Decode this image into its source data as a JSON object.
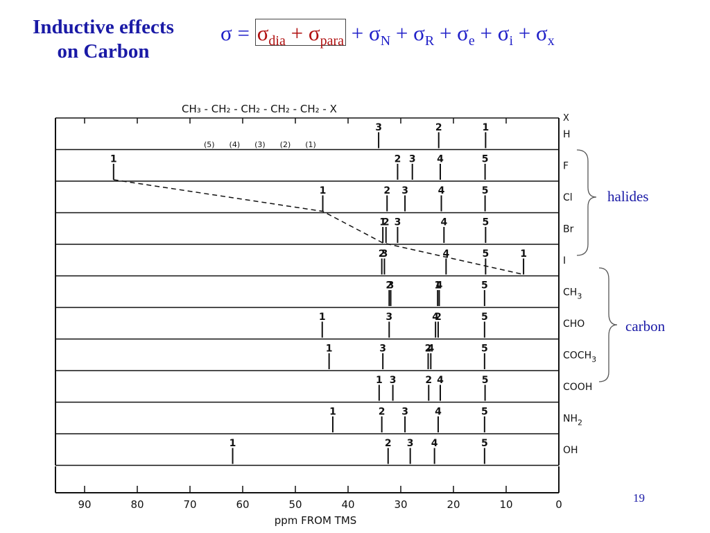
{
  "slide": {
    "title_line1": "Inductive effects",
    "title_line2": "on Carbon",
    "page_number": "19"
  },
  "equation": {
    "sigma": "σ",
    "equals": "=",
    "plus": "+",
    "dia": "dia",
    "para": "para",
    "sub_N": "N",
    "sub_R": "R",
    "sub_e": "e",
    "sub_i": "i",
    "sub_x": "x"
  },
  "chain": {
    "formula": "CH₃ - CH₂ - CH₂ - CH₂ - CH₂ - X",
    "positions": "(5)      (4)      (3)      (2)      (1)"
  },
  "groups": {
    "halides": "halides",
    "carbon": "carbon"
  },
  "colors": {
    "title": "#1a1aa6",
    "equation": "#2020c8",
    "highlight": "#b01010",
    "ink": "#111111"
  },
  "chart_data": {
    "type": "scatter",
    "xlabel": "ppm FROM TMS",
    "xlim": [
      95,
      0
    ],
    "x_ticks": [
      90,
      80,
      70,
      60,
      50,
      40,
      30,
      20,
      10,
      0
    ],
    "column_header": "X",
    "rows": [
      {
        "substituent": "H",
        "label": "H",
        "peaks": [
          {
            "carbon": "3",
            "ppm": 34.2
          },
          {
            "carbon": "2",
            "ppm": 22.8
          },
          {
            "carbon": "1",
            "ppm": 13.9
          }
        ]
      },
      {
        "substituent": "F",
        "label": "F",
        "peaks": [
          {
            "carbon": "1",
            "ppm": 84.5
          },
          {
            "carbon": "2",
            "ppm": 30.6
          },
          {
            "carbon": "3",
            "ppm": 27.8
          },
          {
            "carbon": "4",
            "ppm": 22.5
          },
          {
            "carbon": "5",
            "ppm": 14.0
          }
        ]
      },
      {
        "substituent": "Cl",
        "label": "Cl",
        "peaks": [
          {
            "carbon": "1",
            "ppm": 44.8
          },
          {
            "carbon": "2",
            "ppm": 32.6
          },
          {
            "carbon": "3",
            "ppm": 29.2
          },
          {
            "carbon": "4",
            "ppm": 22.3
          },
          {
            "carbon": "5",
            "ppm": 14.0
          }
        ]
      },
      {
        "substituent": "Br",
        "label": "Br",
        "peaks": [
          {
            "carbon": "1",
            "ppm": 33.4
          },
          {
            "carbon": "2",
            "ppm": 32.8
          },
          {
            "carbon": "3",
            "ppm": 30.6
          },
          {
            "carbon": "4",
            "ppm": 21.8
          },
          {
            "carbon": "5",
            "ppm": 13.9
          }
        ]
      },
      {
        "substituent": "I",
        "label": "I",
        "peaks": [
          {
            "carbon": "1",
            "ppm": 6.7
          },
          {
            "carbon": "2",
            "ppm": 33.6
          },
          {
            "carbon": "3",
            "ppm": 33.1
          },
          {
            "carbon": "4",
            "ppm": 21.4
          },
          {
            "carbon": "5",
            "ppm": 13.9
          }
        ]
      },
      {
        "substituent": "CH3",
        "label": "CH",
        "label_sub": "3",
        "peaks": [
          {
            "carbon": "2",
            "ppm": 32.2
          },
          {
            "carbon": "3",
            "ppm": 31.9
          },
          {
            "carbon": "1",
            "ppm": 23.0
          },
          {
            "carbon": "4",
            "ppm": 22.7
          },
          {
            "carbon": "5",
            "ppm": 14.1
          }
        ]
      },
      {
        "substituent": "CHO",
        "label": "CHO",
        "peaks": [
          {
            "carbon": "1",
            "ppm": 44.9
          },
          {
            "carbon": "3",
            "ppm": 32.2
          },
          {
            "carbon": "4",
            "ppm": 23.4
          },
          {
            "carbon": "2",
            "ppm": 22.9
          },
          {
            "carbon": "5",
            "ppm": 14.1
          }
        ]
      },
      {
        "substituent": "COCH3",
        "label": "COCH",
        "label_sub": "3",
        "peaks": [
          {
            "carbon": "1",
            "ppm": 43.6
          },
          {
            "carbon": "3",
            "ppm": 33.4
          },
          {
            "carbon": "2",
            "ppm": 24.8
          },
          {
            "carbon": "4",
            "ppm": 24.3
          },
          {
            "carbon": "5",
            "ppm": 14.1
          }
        ]
      },
      {
        "substituent": "COOH",
        "label": "COOH",
        "peaks": [
          {
            "carbon": "1",
            "ppm": 34.1
          },
          {
            "carbon": "3",
            "ppm": 31.5
          },
          {
            "carbon": "2",
            "ppm": 24.7
          },
          {
            "carbon": "4",
            "ppm": 22.5
          },
          {
            "carbon": "5",
            "ppm": 14.0
          }
        ]
      },
      {
        "substituent": "NH2",
        "label": "NH",
        "label_sub": "2",
        "peaks": [
          {
            "carbon": "1",
            "ppm": 42.9
          },
          {
            "carbon": "2",
            "ppm": 33.6
          },
          {
            "carbon": "3",
            "ppm": 29.2
          },
          {
            "carbon": "4",
            "ppm": 22.9
          },
          {
            "carbon": "5",
            "ppm": 14.1
          }
        ]
      },
      {
        "substituent": "OH",
        "label": "OH",
        "peaks": [
          {
            "carbon": "1",
            "ppm": 61.9
          },
          {
            "carbon": "2",
            "ppm": 32.4
          },
          {
            "carbon": "3",
            "ppm": 28.2
          },
          {
            "carbon": "4",
            "ppm": 23.6
          },
          {
            "carbon": "5",
            "ppm": 14.1
          }
        ]
      }
    ],
    "dashed_trend": {
      "carbon": "1",
      "rows": [
        "F",
        "Cl",
        "Br",
        "I"
      ]
    }
  }
}
